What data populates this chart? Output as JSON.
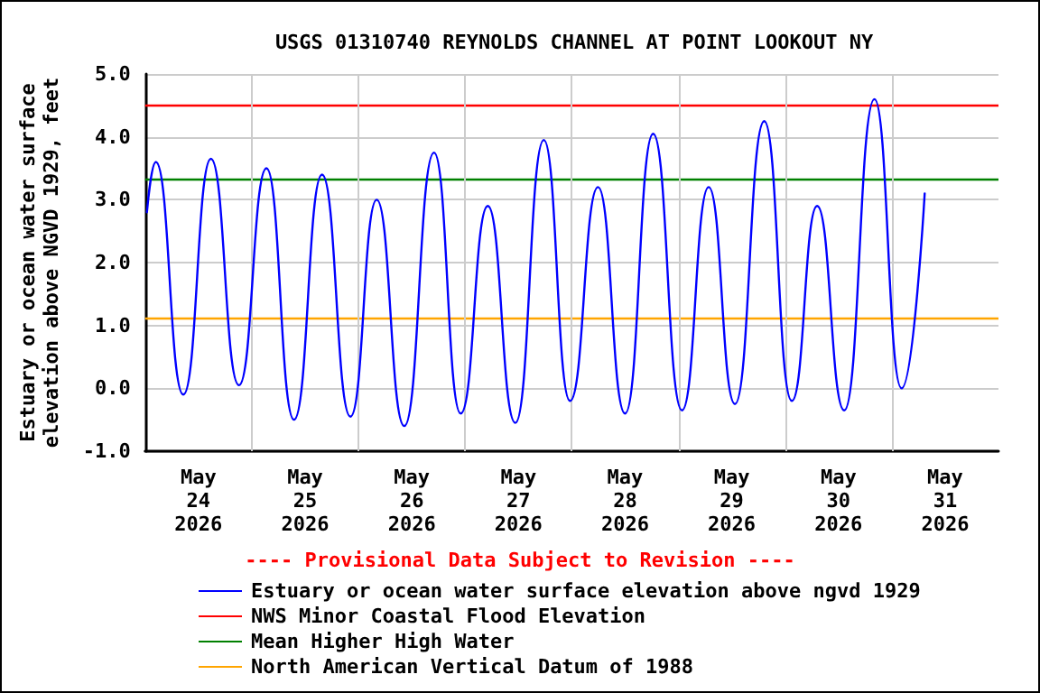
{
  "chart_data": {
    "type": "line",
    "title": "USGS 01310740 REYNOLDS CHANNEL AT POINT LOOKOUT NY",
    "ylabel": "Estuary or ocean water surface\nelevation above NGVD 1929, feet",
    "annotations": [
      "---- Provisional Data Subject to Revision ----"
    ],
    "x": [
      "2026-05-23T12:24",
      "2026-05-23T14:24",
      "2026-05-23T20:36",
      "2026-05-24T02:48",
      "2026-05-24T09:06",
      "2026-05-24T15:18",
      "2026-05-24T21:30",
      "2026-05-25T03:48",
      "2026-05-25T10:12",
      "2026-05-25T16:06",
      "2026-05-25T22:18",
      "2026-05-26T05:00",
      "2026-05-26T11:00",
      "2026-05-26T17:06",
      "2026-05-26T23:18",
      "2026-05-27T05:42",
      "2026-05-27T11:36",
      "2026-05-27T17:54",
      "2026-05-28T00:00",
      "2026-05-28T06:18",
      "2026-05-28T12:48",
      "2026-05-28T18:48",
      "2026-05-29T00:42",
      "2026-05-29T07:18",
      "2026-05-29T13:30",
      "2026-05-29T19:12",
      "2026-05-30T01:18",
      "2026-05-30T08:06",
      "2026-05-30T14:12",
      "2026-05-30T19:24"
    ],
    "series": [
      {
        "name": "Estuary or ocean water surface elevation above ngvd 1929",
        "color": "#0000ff",
        "values": [
          2.8,
          3.6,
          -0.1,
          3.65,
          0.05,
          3.5,
          -0.5,
          3.4,
          -0.45,
          3.0,
          -0.6,
          3.75,
          -0.4,
          2.9,
          -0.55,
          3.95,
          -0.2,
          3.2,
          -0.4,
          4.05,
          -0.35,
          3.2,
          -0.25,
          4.25,
          -0.2,
          2.9,
          -0.35,
          4.6,
          0.0,
          3.1
        ]
      }
    ],
    "ref_lines": [
      {
        "axis": "y",
        "value": 4.5,
        "label": "NWS Minor Coastal Flood Elevation",
        "color": "#ff0000"
      },
      {
        "axis": "y",
        "value": 3.33,
        "label": "Mean Higher High Water",
        "color": "#008000"
      },
      {
        "axis": "y",
        "value": 1.12,
        "label": "North American Vertical Datum of 1988",
        "color": "#ffa500"
      }
    ],
    "xlim": [
      "2026-05-23T12:00",
      "2026-05-31T12:00"
    ],
    "xticks": [
      {
        "value": "2026-05-24",
        "label": "May\n24\n2026"
      },
      {
        "value": "2026-05-24T12:00",
        "label": null
      },
      {
        "value": "2026-05-25",
        "label": "May\n25\n2026"
      },
      {
        "value": "2026-05-25T12:00",
        "label": null
      },
      {
        "value": "2026-05-26",
        "label": "May\n26\n2026"
      },
      {
        "value": "2026-05-26T12:00",
        "label": null
      },
      {
        "value": "2026-05-27",
        "label": "May\n27\n2026"
      },
      {
        "value": "2026-05-27T12:00",
        "label": null
      },
      {
        "value": "2026-05-28",
        "label": "May\n28\n2026"
      },
      {
        "value": "2026-05-28T12:00",
        "label": null
      },
      {
        "value": "2026-05-29",
        "label": "May\n29\n2026"
      },
      {
        "value": "2026-05-29T12:00",
        "label": null
      },
      {
        "value": "2026-05-30",
        "label": "May\n30\n2026"
      },
      {
        "value": "2026-05-30T12:00",
        "label": null
      },
      {
        "value": "2026-05-31",
        "label": "May\n31\n2026"
      }
    ],
    "ylim": [
      -1,
      5
    ],
    "yticks": [
      {
        "value": -1,
        "label": "-1.0"
      },
      {
        "value": 0,
        "label": "0.0"
      },
      {
        "value": 1,
        "label": "1.0"
      },
      {
        "value": 2,
        "label": "2.0"
      },
      {
        "value": 3,
        "label": "3.0"
      },
      {
        "value": 4,
        "label": "4.0"
      },
      {
        "value": 5,
        "label": "5.0"
      }
    ],
    "grid": true,
    "legend": "bottom",
    "marker": "none",
    "line_style": "solid"
  }
}
